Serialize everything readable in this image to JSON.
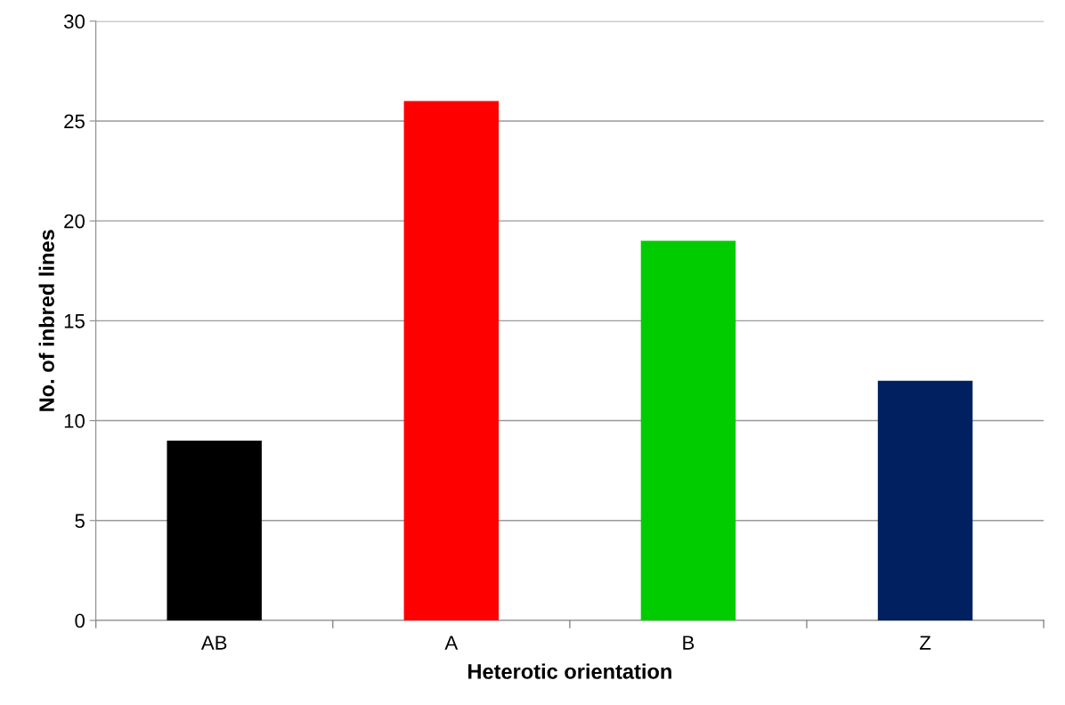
{
  "chart_data": {
    "type": "bar",
    "xlabel": "Heterotic orientation",
    "ylabel": "No. of inbred lines",
    "categories": [
      "AB",
      "A",
      "B",
      "Z"
    ],
    "values": [
      9,
      26,
      19,
      12
    ],
    "colors": [
      "#000000",
      "#ff0000",
      "#00cc00",
      "#002060"
    ],
    "ylim": [
      0,
      30
    ],
    "yticks": [
      0,
      5,
      10,
      15,
      20,
      25,
      30
    ],
    "grid": "y",
    "legend": false
  }
}
